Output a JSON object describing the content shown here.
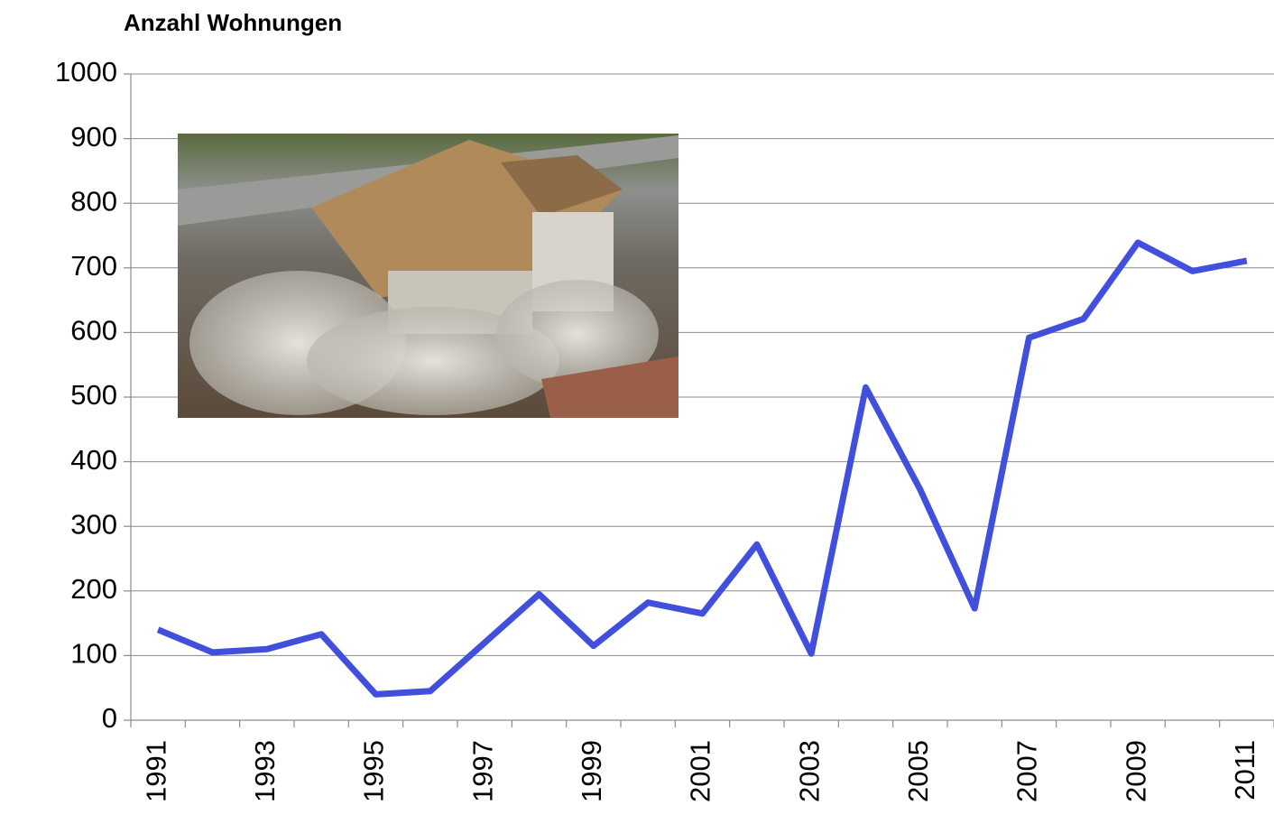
{
  "chart_data": {
    "type": "line",
    "title": "Anzahl Wohnungen",
    "categories": [
      "1991",
      null,
      "1993",
      null,
      "1995",
      null,
      "1997",
      null,
      "1999",
      null,
      "2001",
      null,
      "2003",
      null,
      "2005",
      null,
      "2007",
      null,
      "2009",
      null,
      "2011"
    ],
    "series": [
      {
        "name": "Anzahl Wohnungen",
        "color": "#4050dc",
        "values": [
          140,
          105,
          110,
          133,
          40,
          45,
          120,
          195,
          115,
          182,
          165,
          272,
          103,
          515,
          357,
          173,
          592,
          621,
          739,
          695,
          711
        ]
      }
    ],
    "ylim": [
      0,
      1000
    ],
    "yticks": [
      0,
      100,
      200,
      300,
      400,
      500,
      600,
      700,
      800,
      900,
      1000
    ],
    "grid": true
  }
}
